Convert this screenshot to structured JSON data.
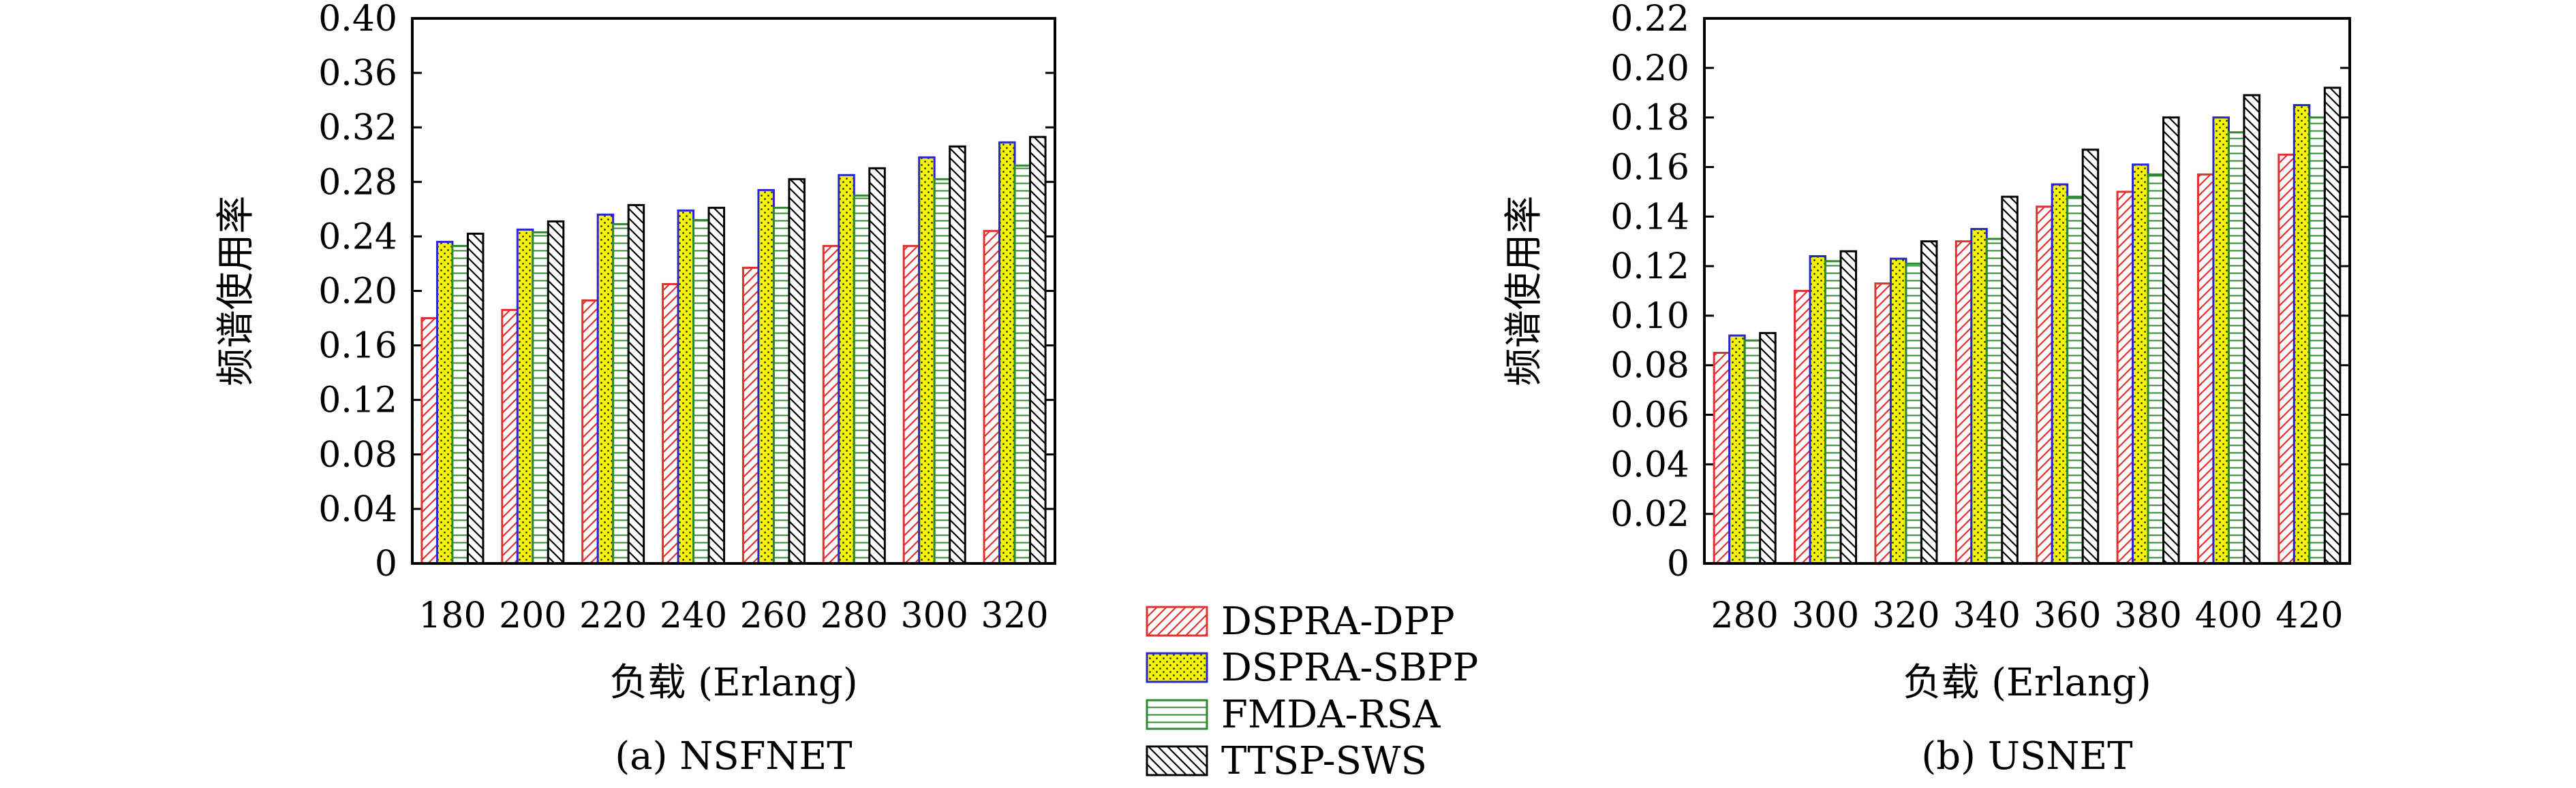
{
  "legend": [
    {
      "label": "DSPRA-DPP",
      "color": "#e0322f",
      "pattern": "diag-fwd"
    },
    {
      "label": "DSPRA-SBPP",
      "color": "#2727d6",
      "pattern": "yellow-dots"
    },
    {
      "label": "FMDA-RSA",
      "color": "#2e8a2e",
      "pattern": "horizontal"
    },
    {
      "label": "TTSP-SWS",
      "color": "#000000",
      "pattern": "diag-back"
    }
  ],
  "chart_data": [
    {
      "type": "bar",
      "caption": "(a) NSFNET",
      "xlabel": "负载 (Erlang)",
      "ylabel": "频谱使用率",
      "categories": [
        "180",
        "200",
        "220",
        "240",
        "260",
        "280",
        "300",
        "320"
      ],
      "ylim": [
        0,
        0.4
      ],
      "yticks": [
        "0",
        "0.04",
        "0.08",
        "0.12",
        "0.16",
        "0.20",
        "0.24",
        "0.28",
        "0.32",
        "0.36",
        "0.40"
      ],
      "series": [
        {
          "name": "DSPRA-DPP",
          "values": [
            0.18,
            0.186,
            0.193,
            0.205,
            0.217,
            0.233,
            0.233,
            0.244
          ]
        },
        {
          "name": "DSPRA-SBPP",
          "values": [
            0.236,
            0.245,
            0.256,
            0.259,
            0.274,
            0.285,
            0.298,
            0.309
          ]
        },
        {
          "name": "FMDA-RSA",
          "values": [
            0.233,
            0.243,
            0.249,
            0.252,
            0.261,
            0.27,
            0.282,
            0.292
          ]
        },
        {
          "name": "TTSP-SWS",
          "values": [
            0.242,
            0.251,
            0.263,
            0.261,
            0.282,
            0.29,
            0.306,
            0.313
          ]
        }
      ]
    },
    {
      "type": "bar",
      "caption": "(b) USNET",
      "xlabel": "负载 (Erlang)",
      "ylabel": "频谱使用率",
      "categories": [
        "280",
        "300",
        "320",
        "340",
        "360",
        "380",
        "400",
        "420"
      ],
      "ylim": [
        0,
        0.22
      ],
      "yticks": [
        "0",
        "0.02",
        "0.04",
        "0.06",
        "0.08",
        "0.10",
        "0.12",
        "0.14",
        "0.16",
        "0.18",
        "0.20",
        "0.22"
      ],
      "series": [
        {
          "name": "DSPRA-DPP",
          "values": [
            0.085,
            0.11,
            0.113,
            0.13,
            0.144,
            0.15,
            0.157,
            0.165
          ]
        },
        {
          "name": "DSPRA-SBPP",
          "values": [
            0.092,
            0.124,
            0.123,
            0.135,
            0.153,
            0.161,
            0.18,
            0.185
          ]
        },
        {
          "name": "FMDA-RSA",
          "values": [
            0.09,
            0.122,
            0.121,
            0.131,
            0.148,
            0.157,
            0.174,
            0.18
          ]
        },
        {
          "name": "TTSP-SWS",
          "values": [
            0.093,
            0.126,
            0.13,
            0.148,
            0.167,
            0.18,
            0.189,
            0.192
          ]
        }
      ]
    }
  ]
}
